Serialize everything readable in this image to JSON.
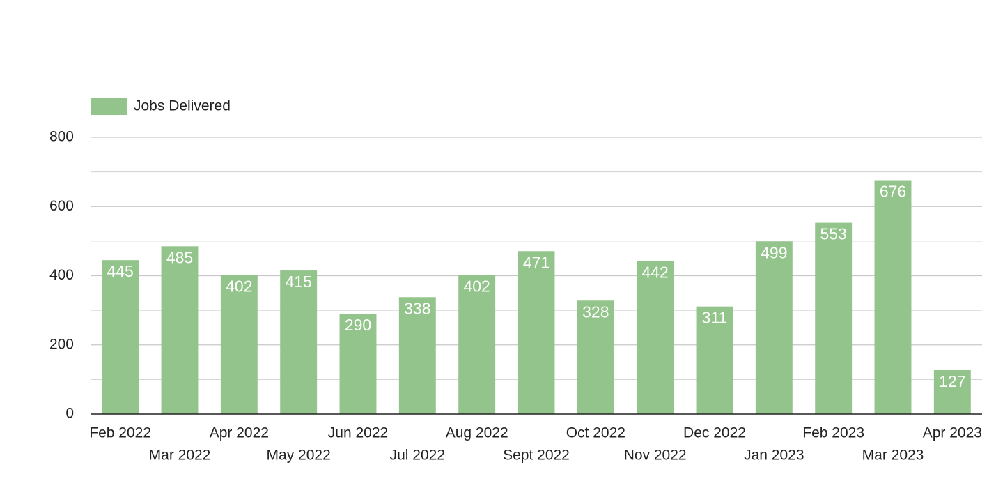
{
  "chart_data": {
    "type": "bar",
    "legend_position": "top-left",
    "series": [
      {
        "name": "Jobs Delivered",
        "color": "#93c48b",
        "values": [
          445,
          485,
          402,
          415,
          290,
          338,
          402,
          471,
          328,
          442,
          311,
          499,
          553,
          676,
          127
        ]
      }
    ],
    "categories": [
      "Feb 2022",
      "Mar 2022",
      "Apr 2022",
      "May 2022",
      "Jun 2022",
      "Jul 2022",
      "Aug 2022",
      "Sept 2022",
      "Oct 2022",
      "Nov 2022",
      "Dec 2022",
      "Jan 2023",
      "Feb 2023",
      "Mar 2023",
      "Apr 2023"
    ],
    "ylim": [
      0,
      800
    ],
    "yticks": [
      0,
      200,
      400,
      600,
      800
    ],
    "minor_yticks": [
      100,
      300,
      500,
      700
    ],
    "grid": true
  }
}
